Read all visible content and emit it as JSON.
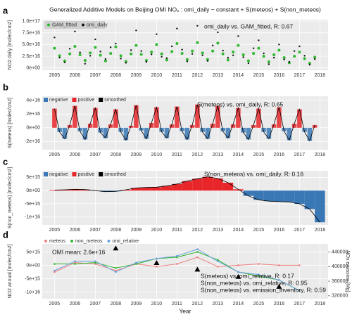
{
  "chart_data": [
    {
      "type": "scatter",
      "label": "a",
      "title": "Generalized Additive Models on Beijing OMI NO₂ :  omi_daily ~ constant + S(meteos) + S(non_meteos)",
      "ylabel": "NO2 daily [molec/cm2]",
      "annotation": "omi_daily vs. GAM_fitted, R:  0.67",
      "x": [
        2005,
        2005.25,
        2005.5,
        2005.75,
        2006,
        2006.25,
        2006.5,
        2006.75,
        2007,
        2007.25,
        2007.5,
        2007.75,
        2008,
        2008.25,
        2008.5,
        2008.75,
        2009,
        2009.25,
        2009.5,
        2009.75,
        2010,
        2010.25,
        2010.5,
        2010.75,
        2011,
        2011.25,
        2011.5,
        2011.75,
        2012,
        2012.25,
        2012.5,
        2012.75,
        2013,
        2013.25,
        2013.5,
        2013.75,
        2014,
        2014.25,
        2014.5,
        2014.75,
        2015,
        2015.25,
        2015.5,
        2015.75,
        2016,
        2016.25,
        2016.5,
        2016.75,
        2017,
        2017.25,
        2017.5,
        2017.75
      ],
      "series": [
        {
          "name": "GAM_fitted",
          "color": "#2eb82e",
          "values": [
            4.2e+16,
            2.6e+16,
            1.5e+16,
            3e+16,
            4.6e+16,
            2.8e+16,
            1.6e+16,
            3.2e+16,
            4.4e+16,
            2.7e+16,
            1.5e+16,
            3.1e+16,
            4.5e+16,
            2.6e+16,
            1.4e+16,
            3e+16,
            4.8e+16,
            2.9e+16,
            1.6e+16,
            3.4e+16,
            5e+16,
            3e+16,
            1.7e+16,
            3.5e+16,
            5.2e+16,
            3.1e+16,
            1.8e+16,
            3.6e+16,
            5.4e+16,
            3.2e+16,
            1.8e+16,
            3.6e+16,
            5.3e+16,
            3e+16,
            1.7e+16,
            3.4e+16,
            4.8e+16,
            2.8e+16,
            1.5e+16,
            3.1e+16,
            4.2e+16,
            2.5e+16,
            1.3e+16,
            2.8e+16,
            3.8e+16,
            2.2e+16,
            1.1e+16,
            2.5e+16,
            3.4e+16,
            2e+16,
            1e+16,
            2.3e+16
          ]
        },
        {
          "name": "omi_daily",
          "color": "#111111",
          "values": [
            6.5e+16,
            2.2e+16,
            1.2e+16,
            4.1e+16,
            7.8e+16,
            3.3e+16,
            9000000000000000.0,
            2.6e+16,
            6.1e+16,
            3.5e+16,
            1.9e+16,
            4.4e+16,
            5.2e+16,
            2e+16,
            1.1e+16,
            3.8e+16,
            8e+16,
            3.6e+16,
            1.3e+16,
            2.9e+16,
            7.2e+16,
            2.4e+16,
            2.1e+16,
            4.6e+16,
            8.4e+16,
            3.9e+16,
            1.4e+16,
            3e+16,
            9e+16,
            2.7e+16,
            1.5e+16,
            4.8e+16,
            7.6e+16,
            3.7e+16,
            2.2e+16,
            2.7e+16,
            6.8e+16,
            2.3e+16,
            1e+16,
            4.2e+16,
            5.9e+16,
            3.1e+16,
            8000000000000000.0,
            2.2e+16,
            5e+16,
            1.8e+16,
            1.3e+16,
            3.6e+16,
            4.6e+16,
            2.6e+16,
            7000000000000000.0,
            1.9e+16
          ]
        }
      ],
      "xlim": [
        2004.4,
        2018.4
      ],
      "xticks": [
        2005,
        2006,
        2007,
        2008,
        2009,
        2010,
        2011,
        2012,
        2013,
        2014,
        2015,
        2016,
        2017,
        2018
      ],
      "ylim": [
        -5000000000000000.0,
        1.03e+17
      ],
      "yticks": [
        {
          "value": 0,
          "label": "0e+00"
        },
        {
          "value": 2.5e+16,
          "label": "2.5e+16"
        },
        {
          "value": 5e+16,
          "label": "5.0e+16"
        },
        {
          "value": 7.5e+16,
          "label": "7.5e+16"
        },
        {
          "value": 1e+17,
          "label": "1.0e+17"
        }
      ]
    },
    {
      "type": "bar",
      "label": "b",
      "ylabel": "S(meteos) [molec/cm2]",
      "annotation": "S(meteos) vs. omi_daily, R:  0.65",
      "legend": [
        {
          "name": "negative",
          "color": "#3a78b5"
        },
        {
          "name": "positive",
          "color": "#e8262a"
        },
        {
          "name": "smoothed",
          "color": "#000000"
        }
      ],
      "x": [
        2005,
        2005.25,
        2005.5,
        2005.75,
        2006,
        2006.25,
        2006.5,
        2006.75,
        2007,
        2007.25,
        2007.5,
        2007.75,
        2008,
        2008.25,
        2008.5,
        2008.75,
        2009,
        2009.25,
        2009.5,
        2009.75,
        2010,
        2010.25,
        2010.5,
        2010.75,
        2011,
        2011.25,
        2011.5,
        2011.75,
        2012,
        2012.25,
        2012.5,
        2012.75,
        2013,
        2013.25,
        2013.5,
        2013.75,
        2014,
        2014.25,
        2014.5,
        2014.75,
        2015,
        2015.25,
        2015.5,
        2015.75,
        2016,
        2016.25,
        2016.5,
        2016.75,
        2017,
        2017.25,
        2017.5,
        2017.75
      ],
      "values": [
        2.8e+16,
        -6000000000000000.0,
        -1.6e+16,
        4000000000000000.0,
        3.2e+16,
        -5000000000000000.0,
        -1.7e+16,
        6000000000000000.0,
        2.9e+16,
        -7000000000000000.0,
        -1.5e+16,
        5000000000000000.0,
        2.7e+16,
        -6000000000000000.0,
        -1.8e+16,
        3000000000000000.0,
        3.3e+16,
        -4000000000000000.0,
        -1.6e+16,
        7000000000000000.0,
        3e+16,
        -6000000000000000.0,
        -1.5e+16,
        5000000000000000.0,
        3.1e+16,
        -5000000000000000.0,
        -1.7e+16,
        4000000000000000.0,
        3.4e+16,
        -6000000000000000.0,
        -1.6e+16,
        6000000000000000.0,
        3.2e+16,
        -5000000000000000.0,
        -1.5e+16,
        5000000000000000.0,
        2.9e+16,
        -7000000000000000.0,
        -1.7e+16,
        4000000000000000.0,
        2.8e+16,
        -6000000000000000.0,
        -1.6e+16,
        5000000000000000.0,
        3e+16,
        -5000000000000000.0,
        -1.8e+16,
        6000000000000000.0,
        2.7e+16,
        -6000000000000000.0,
        -1.9e+16,
        4000000000000000.0
      ],
      "xlim": [
        2004.4,
        2018.4
      ],
      "xticks": [
        2005,
        2006,
        2007,
        2008,
        2009,
        2010,
        2011,
        2012,
        2013,
        2014,
        2015,
        2016,
        2017,
        2018
      ],
      "ylim": [
        -3.2e+16,
        4.6e+16
      ],
      "yticks": [
        {
          "value": -2e+16,
          "label": "-2e+16"
        },
        {
          "value": 0,
          "label": "0e+00"
        },
        {
          "value": 2e+16,
          "label": "2e+16"
        },
        {
          "value": 4e+16,
          "label": "4e+16"
        }
      ]
    },
    {
      "type": "area",
      "label": "c",
      "ylabel": "S(non_meteos) [molec/cm2]",
      "annotation": "S(non_meteos) vs. omi_daily, R:  0.16",
      "legend": [
        {
          "name": "negative",
          "color": "#3a78b5"
        },
        {
          "name": "positive",
          "color": "#e8262a"
        },
        {
          "name": "smoothed",
          "color": "#000000"
        }
      ],
      "x": [
        2005,
        2005.5,
        2006,
        2006.5,
        2007,
        2007.5,
        2008,
        2008.5,
        2009,
        2009.5,
        2010,
        2010.5,
        2011,
        2011.5,
        2012,
        2012.5,
        2013,
        2013.5,
        2014,
        2014.5,
        2015,
        2015.5,
        2016,
        2016.5,
        2017,
        2017.5,
        2018
      ],
      "values": [
        200000000000000.0,
        300000000000000.0,
        500000000000000.0,
        400000000000000.0,
        0,
        -400000000000000.0,
        -300000000000000.0,
        300000000000000.0,
        1000000000000000.0,
        1200000000000000.0,
        1300000000000000.0,
        1800000000000000.0,
        2500000000000000.0,
        3600000000000000.0,
        4500000000000000.0,
        5200000000000000.0,
        4600000000000000.0,
        3000000000000000.0,
        500000000000000.0,
        -2000000000000000.0,
        -3500000000000000.0,
        -4000000000000000.0,
        -4200000000000000.0,
        -4300000000000000.0,
        -5000000000000000.0,
        -7000000000000000.0,
        -1.2e+16
      ],
      "xlim": [
        2004.4,
        2018.4
      ],
      "xticks": [
        2005,
        2006,
        2007,
        2008,
        2009,
        2010,
        2011,
        2012,
        2013,
        2014,
        2015,
        2016,
        2017,
        2018
      ],
      "ylim": [
        -1.3e+16,
        7500000000000000.0
      ],
      "yticks": [
        {
          "value": -1e+16,
          "label": "-1e+16"
        },
        {
          "value": -5000000000000000.0,
          "label": "-5e+15"
        },
        {
          "value": 0,
          "label": "0e+00"
        },
        {
          "value": 5000000000000000.0,
          "label": "5e+15"
        }
      ]
    },
    {
      "type": "line",
      "label": "d",
      "ylabel": "NO2 annual [molec/cm2]",
      "y2label": "NOx emission [Mg]",
      "xlabel": "Year",
      "annotations": [
        "OMI mean:  2.6e+16",
        "S(meteos) vs. omi_relative, R:  0.17",
        "S(non_meteos) vs. omi_relative, R:  0.95",
        "S(non_meteos) vs. emission_inventory, R:  0.59"
      ],
      "x": [
        2005,
        2006,
        2007,
        2008,
        2009,
        2010,
        2011,
        2012,
        2013,
        2014,
        2015,
        2016,
        2017
      ],
      "series": [
        {
          "name": "meteos",
          "color": "#f07f7f",
          "values": [
            -2500000000000000.0,
            1000000000000000.0,
            500000000000000.0,
            -2000000000000000.0,
            500000000000000.0,
            -500000000000000.0,
            500000000000000.0,
            3000000000000000.0,
            -500000000000000.0,
            0,
            500000000000000.0,
            0,
            0
          ]
        },
        {
          "name": "non_meteos",
          "color": "#2eb82e",
          "values": [
            500000000000000.0,
            500000000000000.0,
            1000000000000000.0,
            -1000000000000000.0,
            500000000000000.0,
            2500000000000000.0,
            3000000000000000.0,
            5000000000000000.0,
            2000000000000000.0,
            -2500000000000000.0,
            -4000000000000000.0,
            -5500000000000000.0,
            -9500000000000000.0
          ]
        },
        {
          "name": "omi_relative",
          "color": "#6fa0e0",
          "values": [
            -2000000000000000.0,
            1500000000000000.0,
            1500000000000000.0,
            -2500000000000000.0,
            1000000000000000.0,
            2500000000000000.0,
            3500000000000000.0,
            6000000000000000.0,
            1500000000000000.0,
            -2500000000000000.0,
            -3500000000000000.0,
            -5500000000000000.0,
            -9500000000000000.0
          ]
        }
      ],
      "emission": {
        "color": "#000000",
        "x": [
          2008,
          2010,
          2012,
          2014,
          2016
        ],
        "values": [
          450000,
          410000,
          392000,
          372000,
          345000
        ]
      },
      "xlim": [
        2004.4,
        2018.4
      ],
      "xticks": [
        2005,
        2006,
        2007,
        2008,
        2009,
        2010,
        2011,
        2012,
        2013,
        2014,
        2015,
        2016,
        2017,
        2018
      ],
      "ylim": [
        -1.25e+16,
        8000000000000000.0
      ],
      "yticks": [
        {
          "value": -1e+16,
          "label": "-1e+16"
        },
        {
          "value": -5000000000000000.0,
          "label": "-5e+15"
        },
        {
          "value": 0,
          "label": "0e+00"
        },
        {
          "value": 5000000000000000.0,
          "label": "5e+15"
        }
      ],
      "y2lim": [
        312000,
        462000
      ],
      "y2ticks": [
        320000,
        360000,
        400000,
        440000
      ]
    }
  ]
}
